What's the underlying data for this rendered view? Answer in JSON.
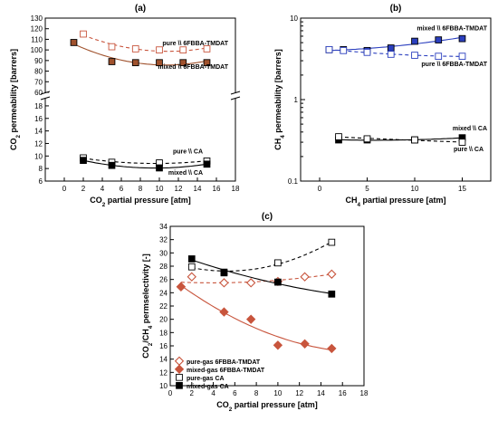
{
  "chart_data": [
    {
      "panel_label": "(a)",
      "type": "scatter",
      "xlabel": "CO₂ partial pressure [atm]",
      "ylabel": "CO₂ permeability [barrers]",
      "xlim": [
        -2,
        18
      ],
      "x_ticks": [
        0,
        2,
        4,
        6,
        8,
        10,
        12,
        14,
        16,
        18
      ],
      "y_broken": true,
      "ylim_lower": [
        6,
        19
      ],
      "ylim_upper": [
        60,
        130
      ],
      "y_ticks_lower": [
        6,
        8,
        10,
        12,
        14,
        16,
        18
      ],
      "y_ticks_upper": [
        60,
        70,
        80,
        90,
        100,
        110,
        120,
        130
      ],
      "grid": false,
      "series": [
        {
          "name": "pure \\\\ 6FBBA-TMDAT",
          "marker": "open-square",
          "color": "#c8553d",
          "fit": "dashed",
          "x": [
            2,
            5,
            7.5,
            10,
            12.5,
            15
          ],
          "y": [
            115,
            103,
            101,
            100,
            100,
            101
          ]
        },
        {
          "name": "mixed \\\\ 6FBBA-TMDAT",
          "marker": "filled-square",
          "color": "#a0522d",
          "fit": "solid",
          "x": [
            1,
            5,
            7.5,
            10,
            12.5,
            15
          ],
          "y": [
            107,
            89,
            88,
            88,
            88,
            88
          ]
        },
        {
          "name": "pure \\\\ CA",
          "marker": "open-square",
          "color": "#000000",
          "fit": "dashed",
          "x": [
            2,
            5,
            10,
            15
          ],
          "y": [
            9.7,
            9.0,
            8.9,
            9.2
          ]
        },
        {
          "name": "mixed \\\\ CA",
          "marker": "filled-square",
          "color": "#000000",
          "fit": "solid",
          "x": [
            2,
            5,
            10,
            15
          ],
          "y": [
            9.3,
            8.5,
            8.1,
            8.7
          ]
        }
      ]
    },
    {
      "panel_label": "(b)",
      "type": "scatter",
      "xlabel": "CH₄ partial pressure [atm]",
      "ylabel": "CH₄ permeability [barrers]",
      "xlim": [
        -2,
        18
      ],
      "x_ticks": [
        0,
        5,
        10,
        15
      ],
      "y_scale": "log",
      "ylim": [
        0.1,
        10
      ],
      "y_tick_labels": [
        "0.1",
        "1",
        "10"
      ],
      "grid": false,
      "series": [
        {
          "name": "mixed \\\\ 6FBBA-TMDAT",
          "marker": "filled-square",
          "color": "#2b3fbf",
          "fit": "solid",
          "x": [
            1,
            2.5,
            5,
            7.5,
            10,
            12.5,
            15
          ],
          "y": [
            4.1,
            4.1,
            4.0,
            4.3,
            5.2,
            5.4,
            5.6
          ]
        },
        {
          "name": "pure \\\\ 6FBBA-TMDAT",
          "marker": "open-square",
          "color": "#2b3fbf",
          "fit": "dashed",
          "x": [
            1,
            2.5,
            5,
            7.5,
            10,
            12.5,
            15
          ],
          "y": [
            4.1,
            4.0,
            3.8,
            3.6,
            3.5,
            3.4,
            3.4
          ]
        },
        {
          "name": "mixed \\\\ CA",
          "marker": "filled-square",
          "color": "#000000",
          "fit": "solid",
          "x": [
            2,
            5,
            10,
            15
          ],
          "y": [
            0.32,
            0.32,
            0.32,
            0.34
          ]
        },
        {
          "name": "pure \\\\ CA",
          "marker": "open-square",
          "color": "#000000",
          "fit": "dashed",
          "x": [
            2,
            5,
            10,
            15
          ],
          "y": [
            0.35,
            0.33,
            0.32,
            0.3
          ]
        }
      ]
    },
    {
      "panel_label": "(c)",
      "type": "scatter",
      "xlabel": "CO₂ partial pressure [atm]",
      "ylabel": "CO₂/CH₄ permselectivity [-]",
      "xlim": [
        0,
        18
      ],
      "x_ticks": [
        0,
        2,
        4,
        6,
        8,
        10,
        12,
        14,
        16,
        18
      ],
      "ylim": [
        10,
        34
      ],
      "y_ticks": [
        10,
        12,
        14,
        16,
        18,
        20,
        22,
        24,
        26,
        28,
        30,
        32,
        34
      ],
      "grid": false,
      "legend": "bottom-left",
      "series": [
        {
          "name": "pure-gas 6FBBA-TMDAT",
          "marker": "open-diamond",
          "color": "#c8553d",
          "fit": "dashed",
          "x": [
            1,
            2,
            5,
            7.5,
            10,
            12.5,
            15
          ],
          "y": [
            24.9,
            26.4,
            25.5,
            25.5,
            25.7,
            26.4,
            26.8
          ]
        },
        {
          "name": "mixed-gas 6FBBA-TMDAT",
          "marker": "filled-diamond",
          "color": "#c8553d",
          "fit": "solid",
          "x": [
            1,
            5,
            7.5,
            10,
            12.5,
            15
          ],
          "y": [
            24.9,
            21.1,
            20.0,
            16.1,
            16.3,
            15.6
          ]
        },
        {
          "name": "pure-gas CA",
          "marker": "open-square",
          "color": "#000000",
          "fit": "dashed",
          "x": [
            2,
            5,
            10,
            15
          ],
          "y": [
            27.9,
            27.0,
            28.5,
            31.6
          ]
        },
        {
          "name": "mixed-gas CA",
          "marker": "filled-square",
          "color": "#000000",
          "fit": "solid",
          "x": [
            2,
            5,
            10,
            15
          ],
          "y": [
            29.1,
            27.1,
            25.6,
            23.8
          ]
        }
      ]
    }
  ]
}
